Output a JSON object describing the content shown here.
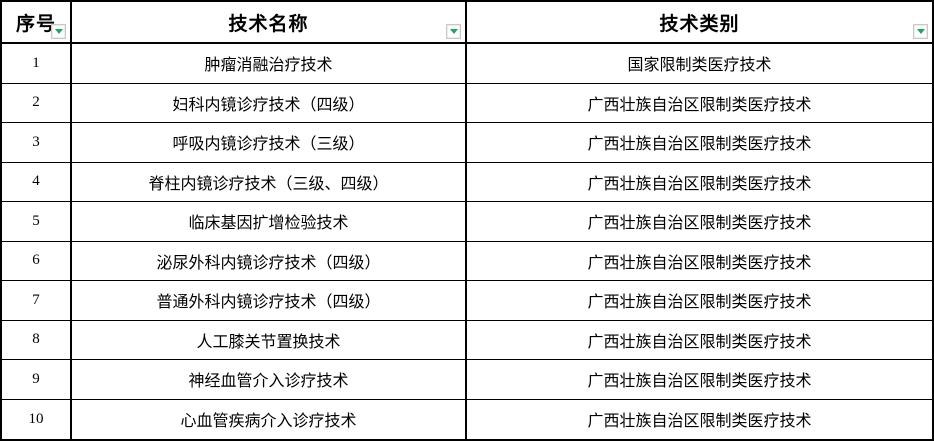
{
  "table": {
    "columns": [
      {
        "label": "序号"
      },
      {
        "label": "技术名称"
      },
      {
        "label": "技术类别"
      }
    ],
    "filter_buttons": {
      "icon": "filter-dropdown-triangle",
      "color": "#21a366"
    },
    "rows": [
      {
        "seq": "1",
        "name": "肿瘤消融治疗技术",
        "category": "国家限制类医疗技术"
      },
      {
        "seq": "2",
        "name": "妇科内镜诊疗技术（四级）",
        "category": "广西壮族自治区限制类医疗技术"
      },
      {
        "seq": "3",
        "name": "呼吸内镜诊疗技术（三级）",
        "category": "广西壮族自治区限制类医疗技术"
      },
      {
        "seq": "4",
        "name": "脊柱内镜诊疗技术（三级、四级）",
        "category": "广西壮族自治区限制类医疗技术"
      },
      {
        "seq": "5",
        "name": "临床基因扩增检验技术",
        "category": "广西壮族自治区限制类医疗技术"
      },
      {
        "seq": "6",
        "name": "泌尿外科内镜诊疗技术（四级）",
        "category": "广西壮族自治区限制类医疗技术"
      },
      {
        "seq": "7",
        "name": "普通外科内镜诊疗技术（四级）",
        "category": "广西壮族自治区限制类医疗技术"
      },
      {
        "seq": "8",
        "name": "人工膝关节置换技术",
        "category": "广西壮族自治区限制类医疗技术"
      },
      {
        "seq": "9",
        "name": "神经血管介入诊疗技术",
        "category": "广西壮族自治区限制类医疗技术"
      },
      {
        "seq": "10",
        "name": "心血管疾病介入诊疗技术",
        "category": "广西壮族自治区限制类医疗技术"
      }
    ]
  },
  "colors": {
    "border": "#000000",
    "filter_accent": "#21a366",
    "filter_button_border": "#c8c8c8",
    "background": "#ffffff"
  }
}
